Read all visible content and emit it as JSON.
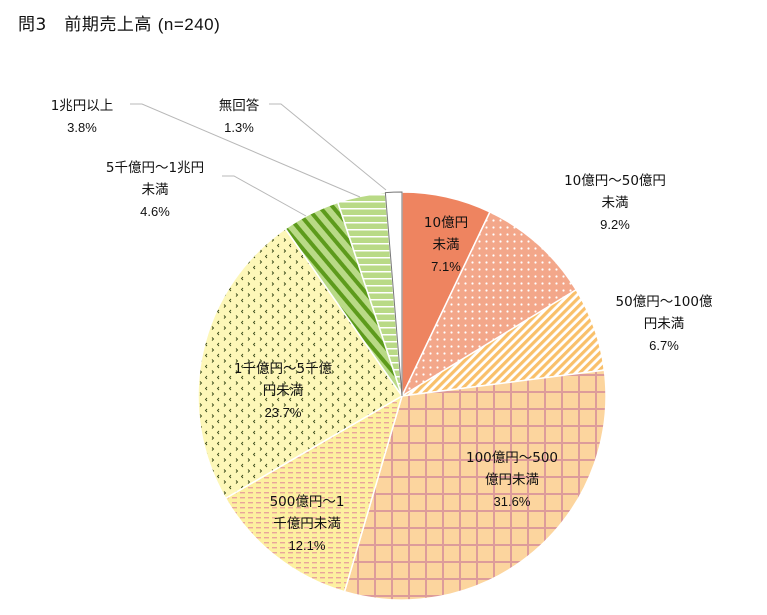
{
  "title": {
    "label": "問3　前期売上高",
    "n": "(n=240)"
  },
  "chart_data": {
    "type": "pie",
    "title": "問3　前期売上高 (n=240)",
    "start_angle_deg": 0,
    "direction": "clockwise",
    "categories": [
      "10億円未満",
      "10億円～50億円未満",
      "50億円～100億円未満",
      "100億円～500億円未満",
      "500億円～1千億円未満",
      "1千億円～5千億円未満",
      "5千億円～1兆円未満",
      "1兆円以上",
      "無回答"
    ],
    "values": [
      7.1,
      9.2,
      6.7,
      31.6,
      12.1,
      23.7,
      4.6,
      3.8,
      1.3
    ],
    "unit": "%",
    "colors": [
      "#ee8460",
      "#f3a78a",
      "#f9c878",
      "#fbd6a0",
      "#fdf0a0",
      "#fdf7b8",
      "#7fb13a",
      "#b9da86",
      "#ffffff"
    ],
    "patterns": [
      "solid",
      "dots",
      "diagonal-stripes",
      "grid",
      "dashes",
      "diamonds-dots",
      "wide-diagonal",
      "horizontal-lines",
      "solid"
    ],
    "legend": "none (data labels on/near slices)"
  },
  "labels": [
    {
      "lines": [
        "10億円",
        "未満"
      ],
      "pct": "7.1%"
    },
    {
      "lines": [
        "10億円～50億円",
        "未満"
      ],
      "pct": "9.2%"
    },
    {
      "lines": [
        "50億円～100億",
        "円未満"
      ],
      "pct": "6.7%"
    },
    {
      "lines": [
        "100億円～500",
        "億円未満"
      ],
      "pct": "31.6%"
    },
    {
      "lines": [
        "500億円～1",
        "千億円未満"
      ],
      "pct": "12.1%"
    },
    {
      "lines": [
        "1千億円～5千億",
        "円未満"
      ],
      "pct": "23.7%"
    },
    {
      "lines": [
        "5千億円～1兆円",
        "未満"
      ],
      "pct": "4.6%"
    },
    {
      "lines": [
        "1兆円以上"
      ],
      "pct": "3.8%"
    },
    {
      "lines": [
        "無回答"
      ],
      "pct": "1.3%"
    }
  ]
}
